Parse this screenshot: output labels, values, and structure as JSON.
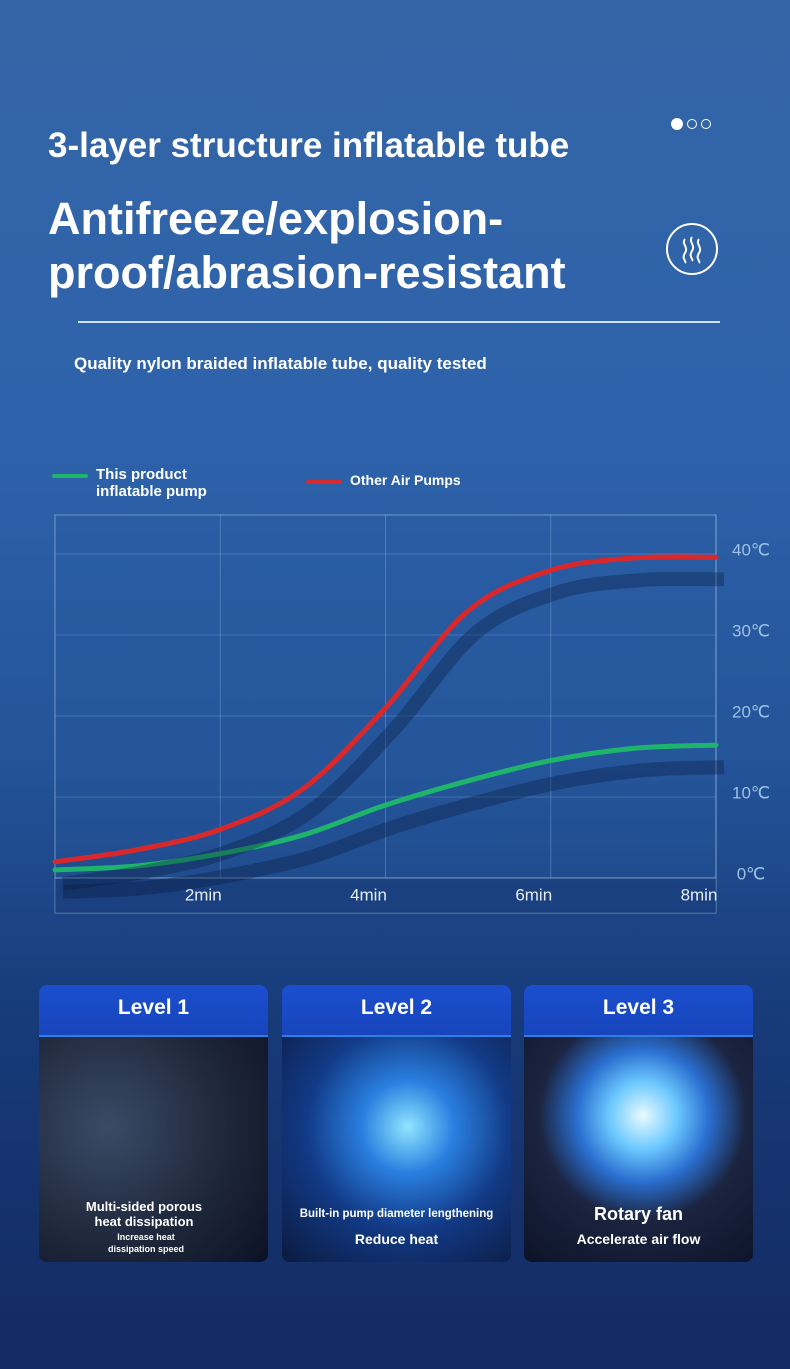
{
  "header": {
    "title": "3-layer structure inflatable tube",
    "headline": "Antifreeze/explosion-proof/abrasion-resistant",
    "subtitle": "Quality nylon braided inflatable tube, quality tested"
  },
  "chart_data": {
    "type": "line",
    "x": [
      0,
      1,
      2,
      3,
      4,
      5,
      6,
      7,
      8
    ],
    "series": [
      {
        "name": "This product inflatable pump",
        "color": "#1fb46c",
        "values": [
          1,
          1.5,
          3,
          5.3,
          9,
          12,
          14.5,
          16,
          16.4
        ]
      },
      {
        "name": "Other Air Pumps",
        "color": "#d9282b",
        "values": [
          2,
          3.5,
          6,
          11,
          21,
          33,
          38,
          39.5,
          39.6
        ]
      }
    ],
    "xlim": [
      0,
      8
    ],
    "xticks": [
      {
        "value": 2,
        "label": "2min"
      },
      {
        "value": 4,
        "label": "4min"
      },
      {
        "value": 6,
        "label": "6min"
      },
      {
        "value": 8,
        "label": "8min"
      }
    ],
    "ylim": [
      0,
      40
    ],
    "yticks": [
      {
        "value": 0,
        "label": "0℃"
      },
      {
        "value": 10,
        "label": "10℃"
      },
      {
        "value": 20,
        "label": "20℃"
      },
      {
        "value": 30,
        "label": "30℃"
      },
      {
        "value": 40,
        "label": "40℃"
      }
    ],
    "grid": true
  },
  "cards": [
    {
      "title": "Level 1",
      "caption": "Multi-sided porous heat dissipation",
      "note": "Increase heat dissipation speed"
    },
    {
      "title": "Level 2",
      "caption": "Built-in pump diameter lengthening",
      "note": "Reduce heat"
    },
    {
      "title": "Level 3",
      "caption": "Rotary fan",
      "note": "Accelerate air flow"
    }
  ]
}
